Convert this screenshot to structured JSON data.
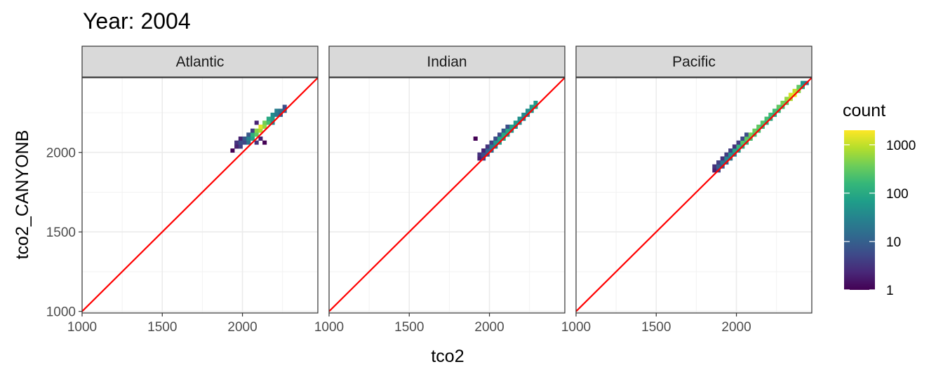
{
  "title": "Year: 2004",
  "xlabel": "tco2",
  "ylabel": "tco2_CANYONB",
  "legend": {
    "title": "count",
    "scale": "log10",
    "ticks": [
      1,
      10,
      100,
      1000
    ],
    "tick_labels": [
      "1",
      "10",
      "100",
      "1000"
    ],
    "palette": "viridis",
    "colors": [
      "#440154",
      "#482878",
      "#3E4A89",
      "#31688E",
      "#26828E",
      "#1F9E89",
      "#35B779",
      "#6DCD59",
      "#B4DE2C",
      "#FDE725"
    ],
    "max": 2000
  },
  "chart_data": {
    "type": "heatmap",
    "subtype": "bin2d",
    "x_axis": {
      "label": "tco2",
      "lim": [
        1000,
        2470
      ],
      "ticks": [
        1000,
        1500,
        2000
      ],
      "tick_labels": [
        "1000",
        "1500",
        "2000"
      ]
    },
    "y_axis": {
      "label": "tco2_CANYONB",
      "lim": [
        990,
        2470
      ],
      "ticks": [
        1000,
        1500,
        2000
      ],
      "tick_labels": [
        "1000",
        "1500",
        "2000"
      ]
    },
    "grid": true,
    "reference_line": {
      "slope": 1,
      "intercept": 0,
      "color": "#FF0000"
    },
    "bin_width": 25,
    "panels": [
      {
        "name": "Atlantic",
        "bins": [
          [
            1925,
            2000,
            1
          ],
          [
            1950,
            2025,
            2
          ],
          [
            1950,
            2050,
            3
          ],
          [
            1975,
            2025,
            4
          ],
          [
            1975,
            2050,
            6
          ],
          [
            1975,
            2075,
            2
          ],
          [
            2000,
            2050,
            5
          ],
          [
            2000,
            2075,
            8
          ],
          [
            2025,
            2050,
            20
          ],
          [
            2025,
            2075,
            30
          ],
          [
            2025,
            2100,
            8
          ],
          [
            2050,
            2075,
            80
          ],
          [
            2050,
            2100,
            120
          ],
          [
            2050,
            2125,
            4
          ],
          [
            2075,
            2100,
            300
          ],
          [
            2075,
            2125,
            500
          ],
          [
            2075,
            2175,
            2
          ],
          [
            2075,
            2050,
            3
          ],
          [
            2100,
            2125,
            800
          ],
          [
            2100,
            2150,
            1500
          ],
          [
            2100,
            2075,
            2
          ],
          [
            2125,
            2150,
            600
          ],
          [
            2125,
            2175,
            400
          ],
          [
            2125,
            2050,
            1
          ],
          [
            2150,
            2175,
            200
          ],
          [
            2150,
            2200,
            100
          ],
          [
            2175,
            2175,
            30
          ],
          [
            2175,
            2200,
            60
          ],
          [
            2175,
            2225,
            40
          ],
          [
            2200,
            2225,
            20
          ],
          [
            2200,
            2250,
            25
          ],
          [
            2225,
            2250,
            15
          ],
          [
            2225,
            2225,
            8
          ],
          [
            2250,
            2250,
            10
          ],
          [
            2250,
            2275,
            6
          ]
        ]
      },
      {
        "name": "Indian",
        "bins": [
          [
            1900,
            2075,
            1
          ],
          [
            1925,
            1950,
            2
          ],
          [
            1925,
            1975,
            3
          ],
          [
            1950,
            1950,
            4
          ],
          [
            1950,
            1975,
            6
          ],
          [
            1950,
            2000,
            2
          ],
          [
            1975,
            1975,
            8
          ],
          [
            1975,
            2000,
            12
          ],
          [
            1975,
            2025,
            3
          ],
          [
            2000,
            2000,
            15
          ],
          [
            2000,
            2025,
            25
          ],
          [
            2000,
            2050,
            4
          ],
          [
            2025,
            2025,
            30
          ],
          [
            2025,
            2050,
            50
          ],
          [
            2025,
            2075,
            6
          ],
          [
            2050,
            2050,
            60
          ],
          [
            2050,
            2075,
            90
          ],
          [
            2050,
            2100,
            5
          ],
          [
            2075,
            2075,
            80
          ],
          [
            2075,
            2100,
            100
          ],
          [
            2075,
            2125,
            8
          ],
          [
            2100,
            2100,
            60
          ],
          [
            2100,
            2125,
            90
          ],
          [
            2100,
            2150,
            6
          ],
          [
            2125,
            2125,
            50
          ],
          [
            2125,
            2150,
            70
          ],
          [
            2150,
            2150,
            40
          ],
          [
            2150,
            2175,
            60
          ],
          [
            2175,
            2175,
            30
          ],
          [
            2175,
            2200,
            45
          ],
          [
            2200,
            2200,
            25
          ],
          [
            2200,
            2225,
            35
          ],
          [
            2225,
            2225,
            30
          ],
          [
            2225,
            2250,
            40
          ],
          [
            2250,
            2250,
            50
          ],
          [
            2250,
            2275,
            60
          ],
          [
            2275,
            2275,
            80
          ],
          [
            2275,
            2300,
            60
          ]
        ]
      },
      {
        "name": "Pacific",
        "bins": [
          [
            1850,
            1875,
            2
          ],
          [
            1850,
            1900,
            3
          ],
          [
            1875,
            1875,
            5
          ],
          [
            1875,
            1900,
            10
          ],
          [
            1875,
            1925,
            4
          ],
          [
            1900,
            1900,
            8
          ],
          [
            1900,
            1925,
            20
          ],
          [
            1900,
            1950,
            3
          ],
          [
            1925,
            1925,
            15
          ],
          [
            1925,
            1950,
            30
          ],
          [
            1925,
            1975,
            4
          ],
          [
            1950,
            1950,
            20
          ],
          [
            1950,
            1975,
            50
          ],
          [
            1950,
            2000,
            4
          ],
          [
            1975,
            1975,
            30
          ],
          [
            1975,
            2000,
            80
          ],
          [
            1975,
            2025,
            3
          ],
          [
            2000,
            2000,
            60
          ],
          [
            2000,
            2025,
            150
          ],
          [
            2000,
            2050,
            4
          ],
          [
            2025,
            2025,
            100
          ],
          [
            2025,
            2050,
            250
          ],
          [
            2025,
            2075,
            5
          ],
          [
            2050,
            2050,
            150
          ],
          [
            2050,
            2075,
            300
          ],
          [
            2050,
            2100,
            6
          ],
          [
            2075,
            2075,
            200
          ],
          [
            2075,
            2100,
            400
          ],
          [
            2100,
            2100,
            200
          ],
          [
            2100,
            2125,
            350
          ],
          [
            2125,
            2125,
            200
          ],
          [
            2125,
            2150,
            300
          ],
          [
            2150,
            2150,
            150
          ],
          [
            2150,
            2175,
            250
          ],
          [
            2175,
            2175,
            120
          ],
          [
            2175,
            2200,
            200
          ],
          [
            2200,
            2200,
            100
          ],
          [
            2200,
            2225,
            180
          ],
          [
            2225,
            2225,
            100
          ],
          [
            2225,
            2250,
            200
          ],
          [
            2250,
            2250,
            150
          ],
          [
            2250,
            2275,
            300
          ],
          [
            2275,
            2275,
            200
          ],
          [
            2275,
            2300,
            400
          ],
          [
            2300,
            2300,
            300
          ],
          [
            2300,
            2325,
            600
          ],
          [
            2325,
            2325,
            800
          ],
          [
            2325,
            2350,
            1200
          ],
          [
            2350,
            2350,
            1500
          ],
          [
            2350,
            2375,
            1000
          ],
          [
            2375,
            2375,
            500
          ],
          [
            2375,
            2400,
            300
          ],
          [
            2400,
            2400,
            100
          ],
          [
            2400,
            2425,
            50
          ],
          [
            2425,
            2425,
            20
          ]
        ]
      }
    ]
  }
}
